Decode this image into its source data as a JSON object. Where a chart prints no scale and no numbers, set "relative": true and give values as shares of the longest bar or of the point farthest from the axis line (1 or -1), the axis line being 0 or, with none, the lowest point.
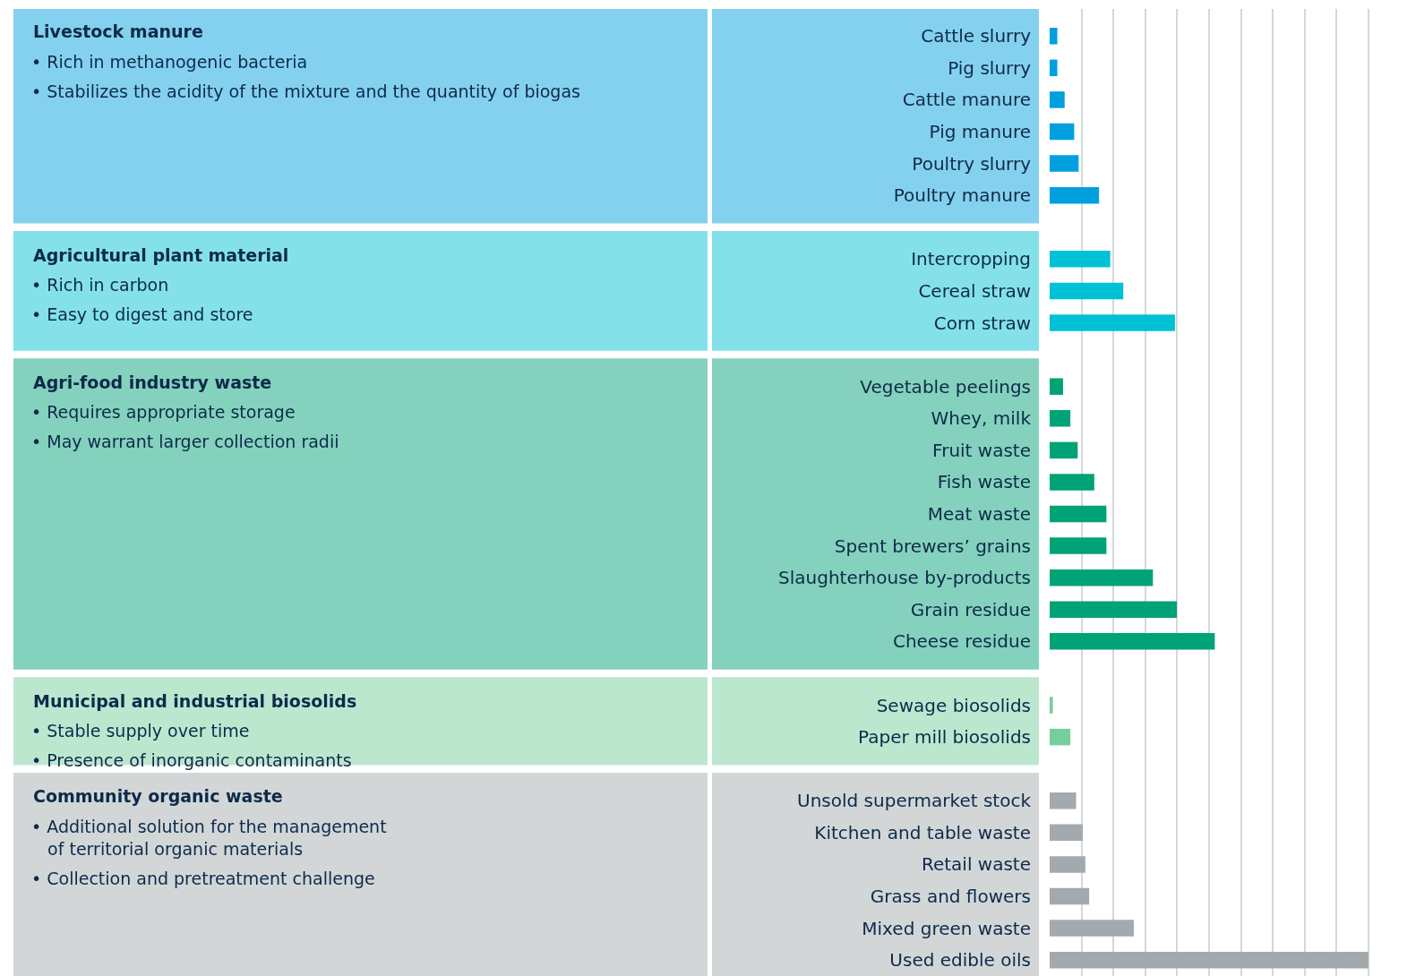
{
  "chart_data": {
    "type": "bar",
    "orientation": "horizontal",
    "relative": true,
    "grid": "x",
    "categories": [
      "Cattle slurry",
      "Pig slurry",
      "Cattle manure",
      "Pig manure",
      "Poultry slurry",
      "Poultry manure",
      null,
      "Intercropping",
      "Cereal straw",
      "Corn straw",
      null,
      "Vegetable peelings",
      "Whey, milk",
      "Fruit waste",
      "Fish waste",
      "Meat waste",
      "Spent brewers’ grains",
      "Slaughterhouse by-products",
      "Grain residue",
      "Cheese residue",
      null,
      "Sewage biosolids",
      "Paper mill biosolids",
      null,
      "Unsold supermarket stock",
      "Kitchen and table waste",
      "Retail waste",
      "Grass and flowers",
      "Mixed green waste",
      "Used edible oils"
    ],
    "series": [
      {
        "color": "#00a0df",
        "values": [
          0.024,
          0.024,
          0.047,
          0.077,
          0.091,
          0.155,
          null,
          null,
          null,
          null,
          null,
          null,
          null,
          null,
          null,
          null,
          null,
          null,
          null,
          null,
          null,
          null,
          null,
          null,
          null,
          null,
          null,
          null,
          null,
          null
        ]
      },
      {
        "color": "#00c1d5",
        "values": [
          null,
          null,
          null,
          null,
          null,
          null,
          null,
          0.19,
          0.231,
          0.393,
          null,
          null,
          null,
          null,
          null,
          null,
          null,
          null,
          null,
          null,
          null,
          null,
          null,
          null,
          null,
          null,
          null,
          null,
          null,
          null
        ]
      },
      {
        "color": "#00a377",
        "values": [
          null,
          null,
          null,
          null,
          null,
          null,
          null,
          null,
          null,
          null,
          null,
          0.042,
          0.065,
          0.088,
          0.14,
          0.178,
          0.178,
          0.324,
          0.399,
          0.518,
          null,
          null,
          null,
          null,
          null,
          null,
          null,
          null,
          null,
          null
        ]
      },
      {
        "color": "#74cf9b",
        "values": [
          null,
          null,
          null,
          null,
          null,
          null,
          null,
          null,
          null,
          null,
          null,
          null,
          null,
          null,
          null,
          null,
          null,
          null,
          null,
          null,
          null,
          0.01,
          0.065,
          null,
          null,
          null,
          null,
          null,
          null,
          null
        ]
      },
      {
        "color": "#a3aaad",
        "values": [
          null,
          null,
          null,
          null,
          null,
          null,
          null,
          null,
          null,
          null,
          null,
          null,
          null,
          null,
          null,
          null,
          null,
          null,
          null,
          null,
          null,
          null,
          null,
          null,
          0.083,
          0.104,
          0.112,
          0.124,
          0.264,
          1
        ]
      }
    ],
    "annotations": [
      "Livestock manure",
      "• Rich in methanogenic bacteria",
      "• Stabilizes the acidity of the mixture and the quantity of biogas",
      "Agricultural plant material",
      "• Rich in carbon",
      "• Easy to digest and store",
      "Agri-food industry waste",
      "• Requires appropriate storage",
      "• May warrant larger collection radii",
      "Municipal and industrial biosolids",
      "• Stable supply over time",
      "• Presence of inorganic contaminants",
      "Community organic waste",
      "• Additional solution for the management\nof territorial organic materials",
      "• Collection and pretreatment challenge"
    ]
  }
}
